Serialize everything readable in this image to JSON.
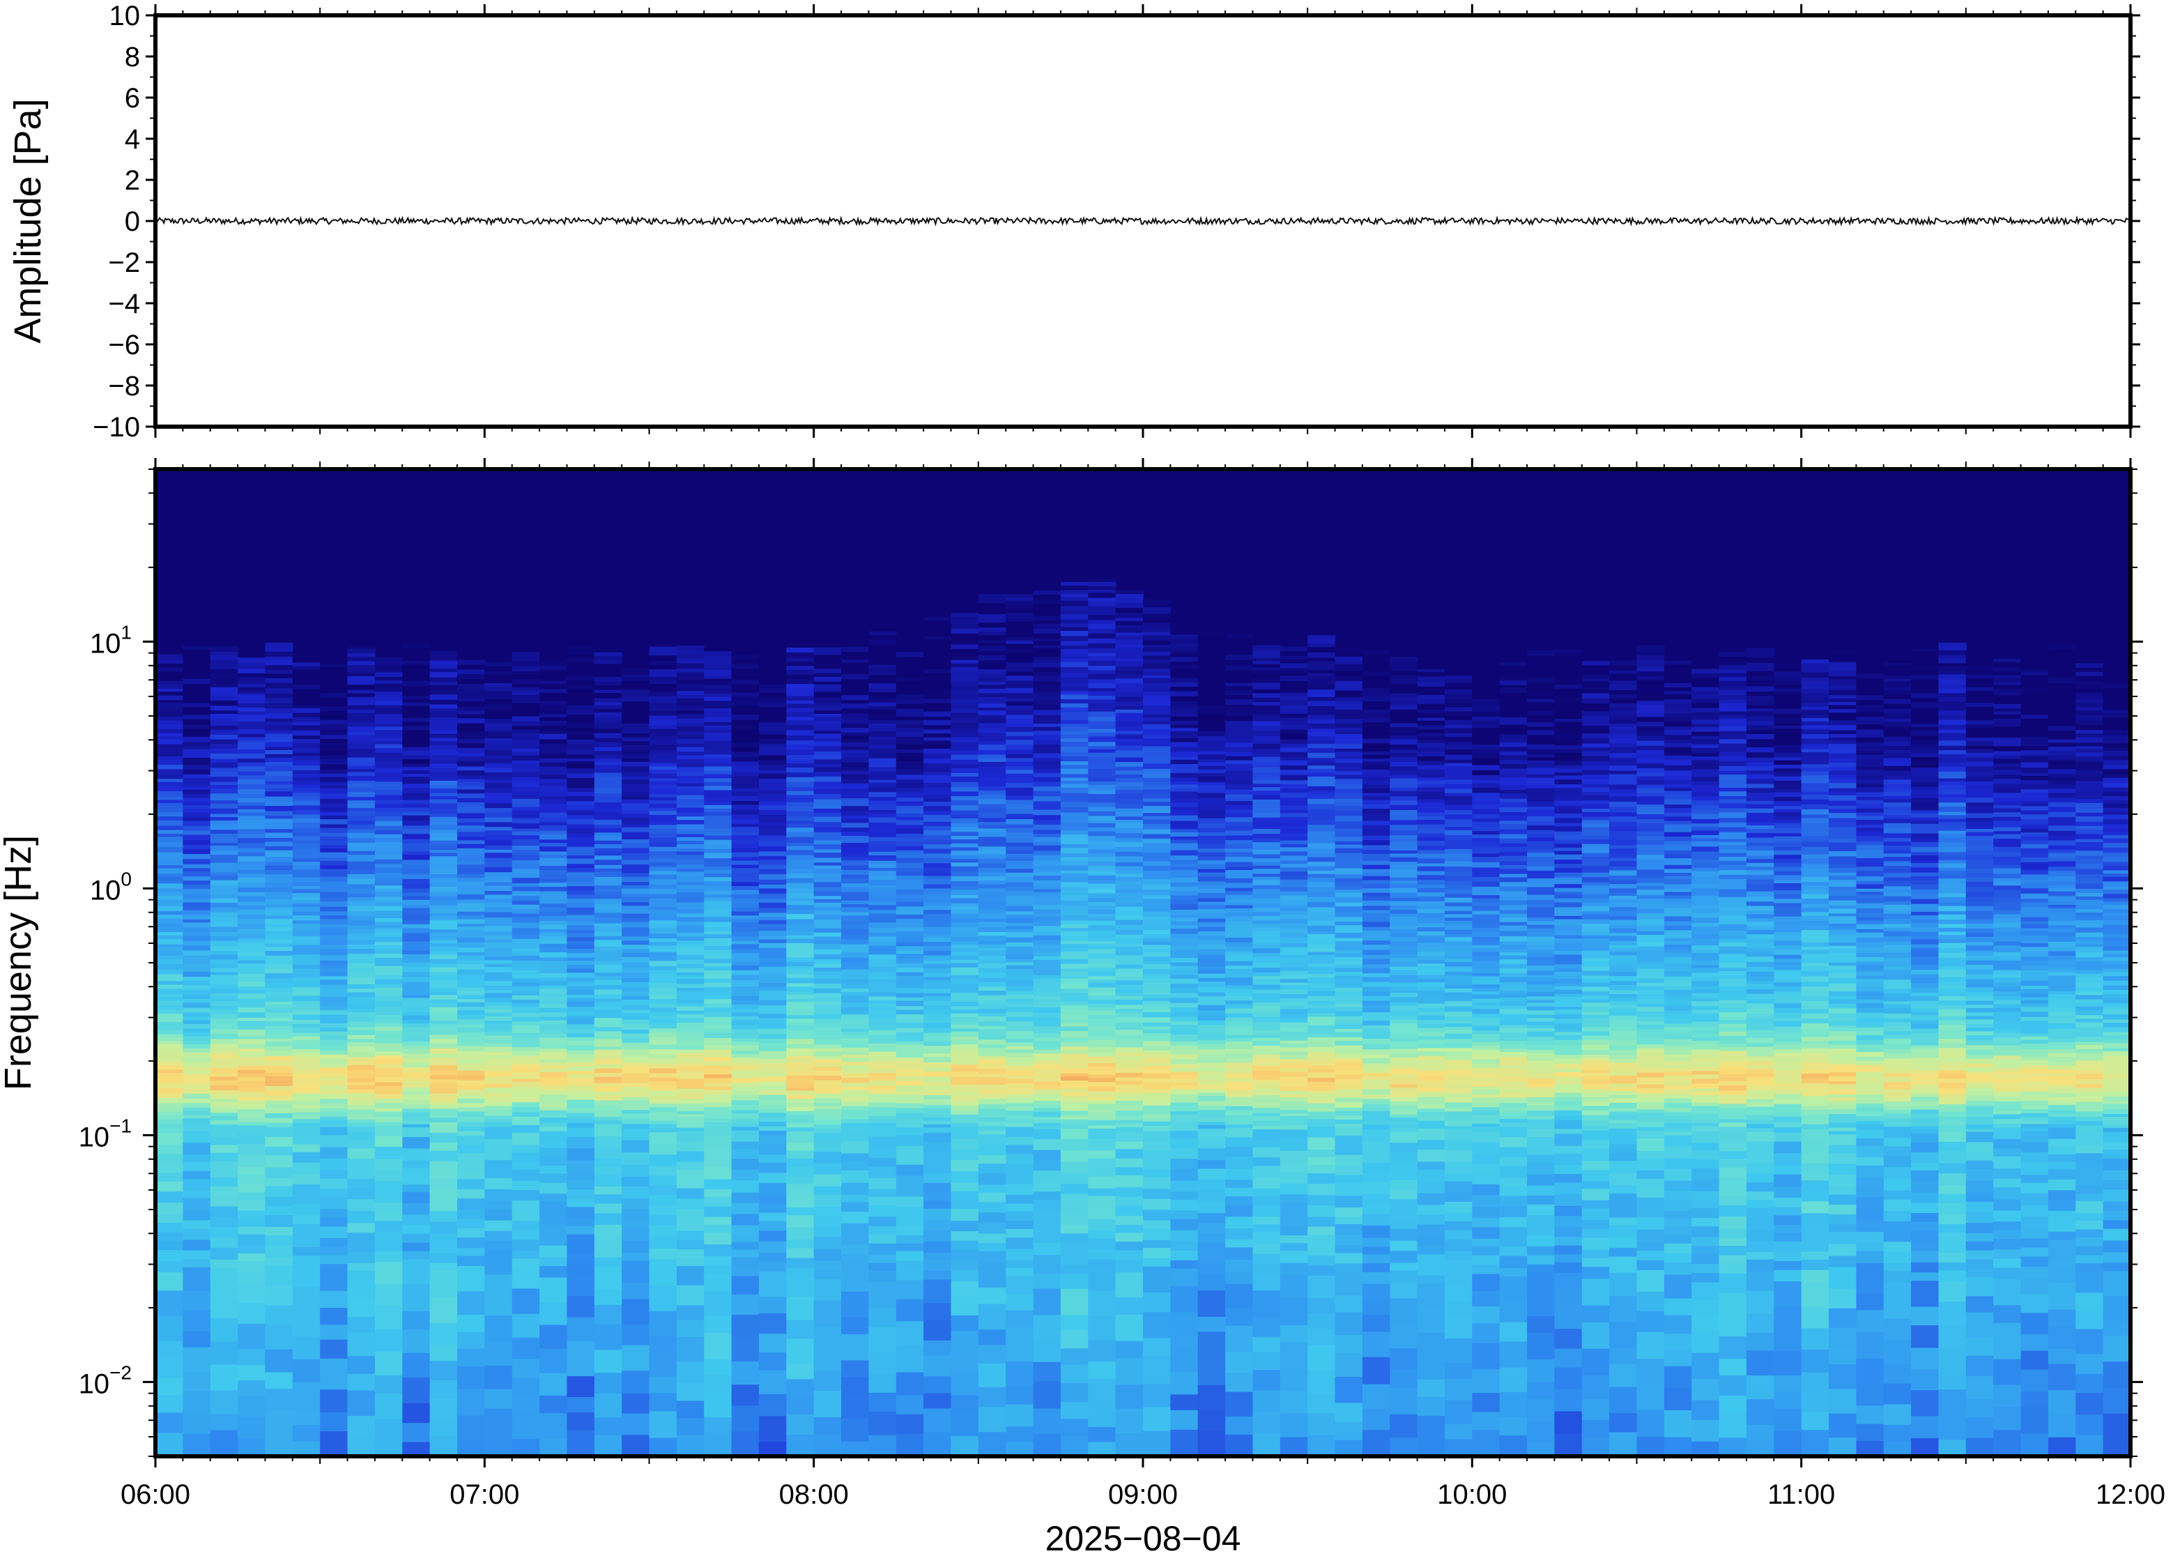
{
  "chart_data": [
    {
      "type": "line",
      "panel": "waveform",
      "ylabel": "Amplitude [Pa]",
      "ylim": [
        -10,
        10
      ],
      "yticks": [
        10,
        8,
        6,
        4,
        2,
        0,
        -2,
        -4,
        -6,
        -8,
        -10
      ],
      "ytick_labels": [
        "10",
        "8",
        "6",
        "4",
        "2",
        "0",
        "−2",
        "−4",
        "−6",
        "−8",
        "−10"
      ],
      "xlim_hours": [
        6,
        12
      ],
      "series": [
        {
          "baseline": 0,
          "approx_peak_amplitude": 0.15
        }
      ],
      "grid": false
    },
    {
      "type": "heatmap",
      "panel": "spectrogram",
      "ylabel": "Frequency [Hz]",
      "y_scale": "log",
      "ylim_hz": [
        0.005,
        50
      ],
      "yticks_hz": [
        10,
        1,
        0.1,
        0.01
      ],
      "ytick_labels": [
        {
          "base": "10",
          "exp": "1"
        },
        {
          "base": "10",
          "exp": "0"
        },
        {
          "base": "10",
          "exp": "−1"
        },
        {
          "base": "10",
          "exp": "−2"
        }
      ],
      "xlabel": "2025−08−04",
      "xticks_hours": [
        6,
        7,
        8,
        9,
        10,
        11,
        12
      ],
      "xtick_labels": [
        "06:00",
        "07:00",
        "08:00",
        "09:00",
        "10:00",
        "11:00",
        "12:00"
      ],
      "colormap": [
        "#0c0573",
        "#1c29d6",
        "#2f8ef0",
        "#3fc8ef",
        "#74e5cf",
        "#c3f0a0",
        "#f8df7a",
        "#f7a65c"
      ],
      "microseism_peak_hz": 0.17,
      "energy_ceiling_hz": 4.5,
      "max_ceiling_hz": 9,
      "max_ceiling_time": "08:50"
    }
  ]
}
